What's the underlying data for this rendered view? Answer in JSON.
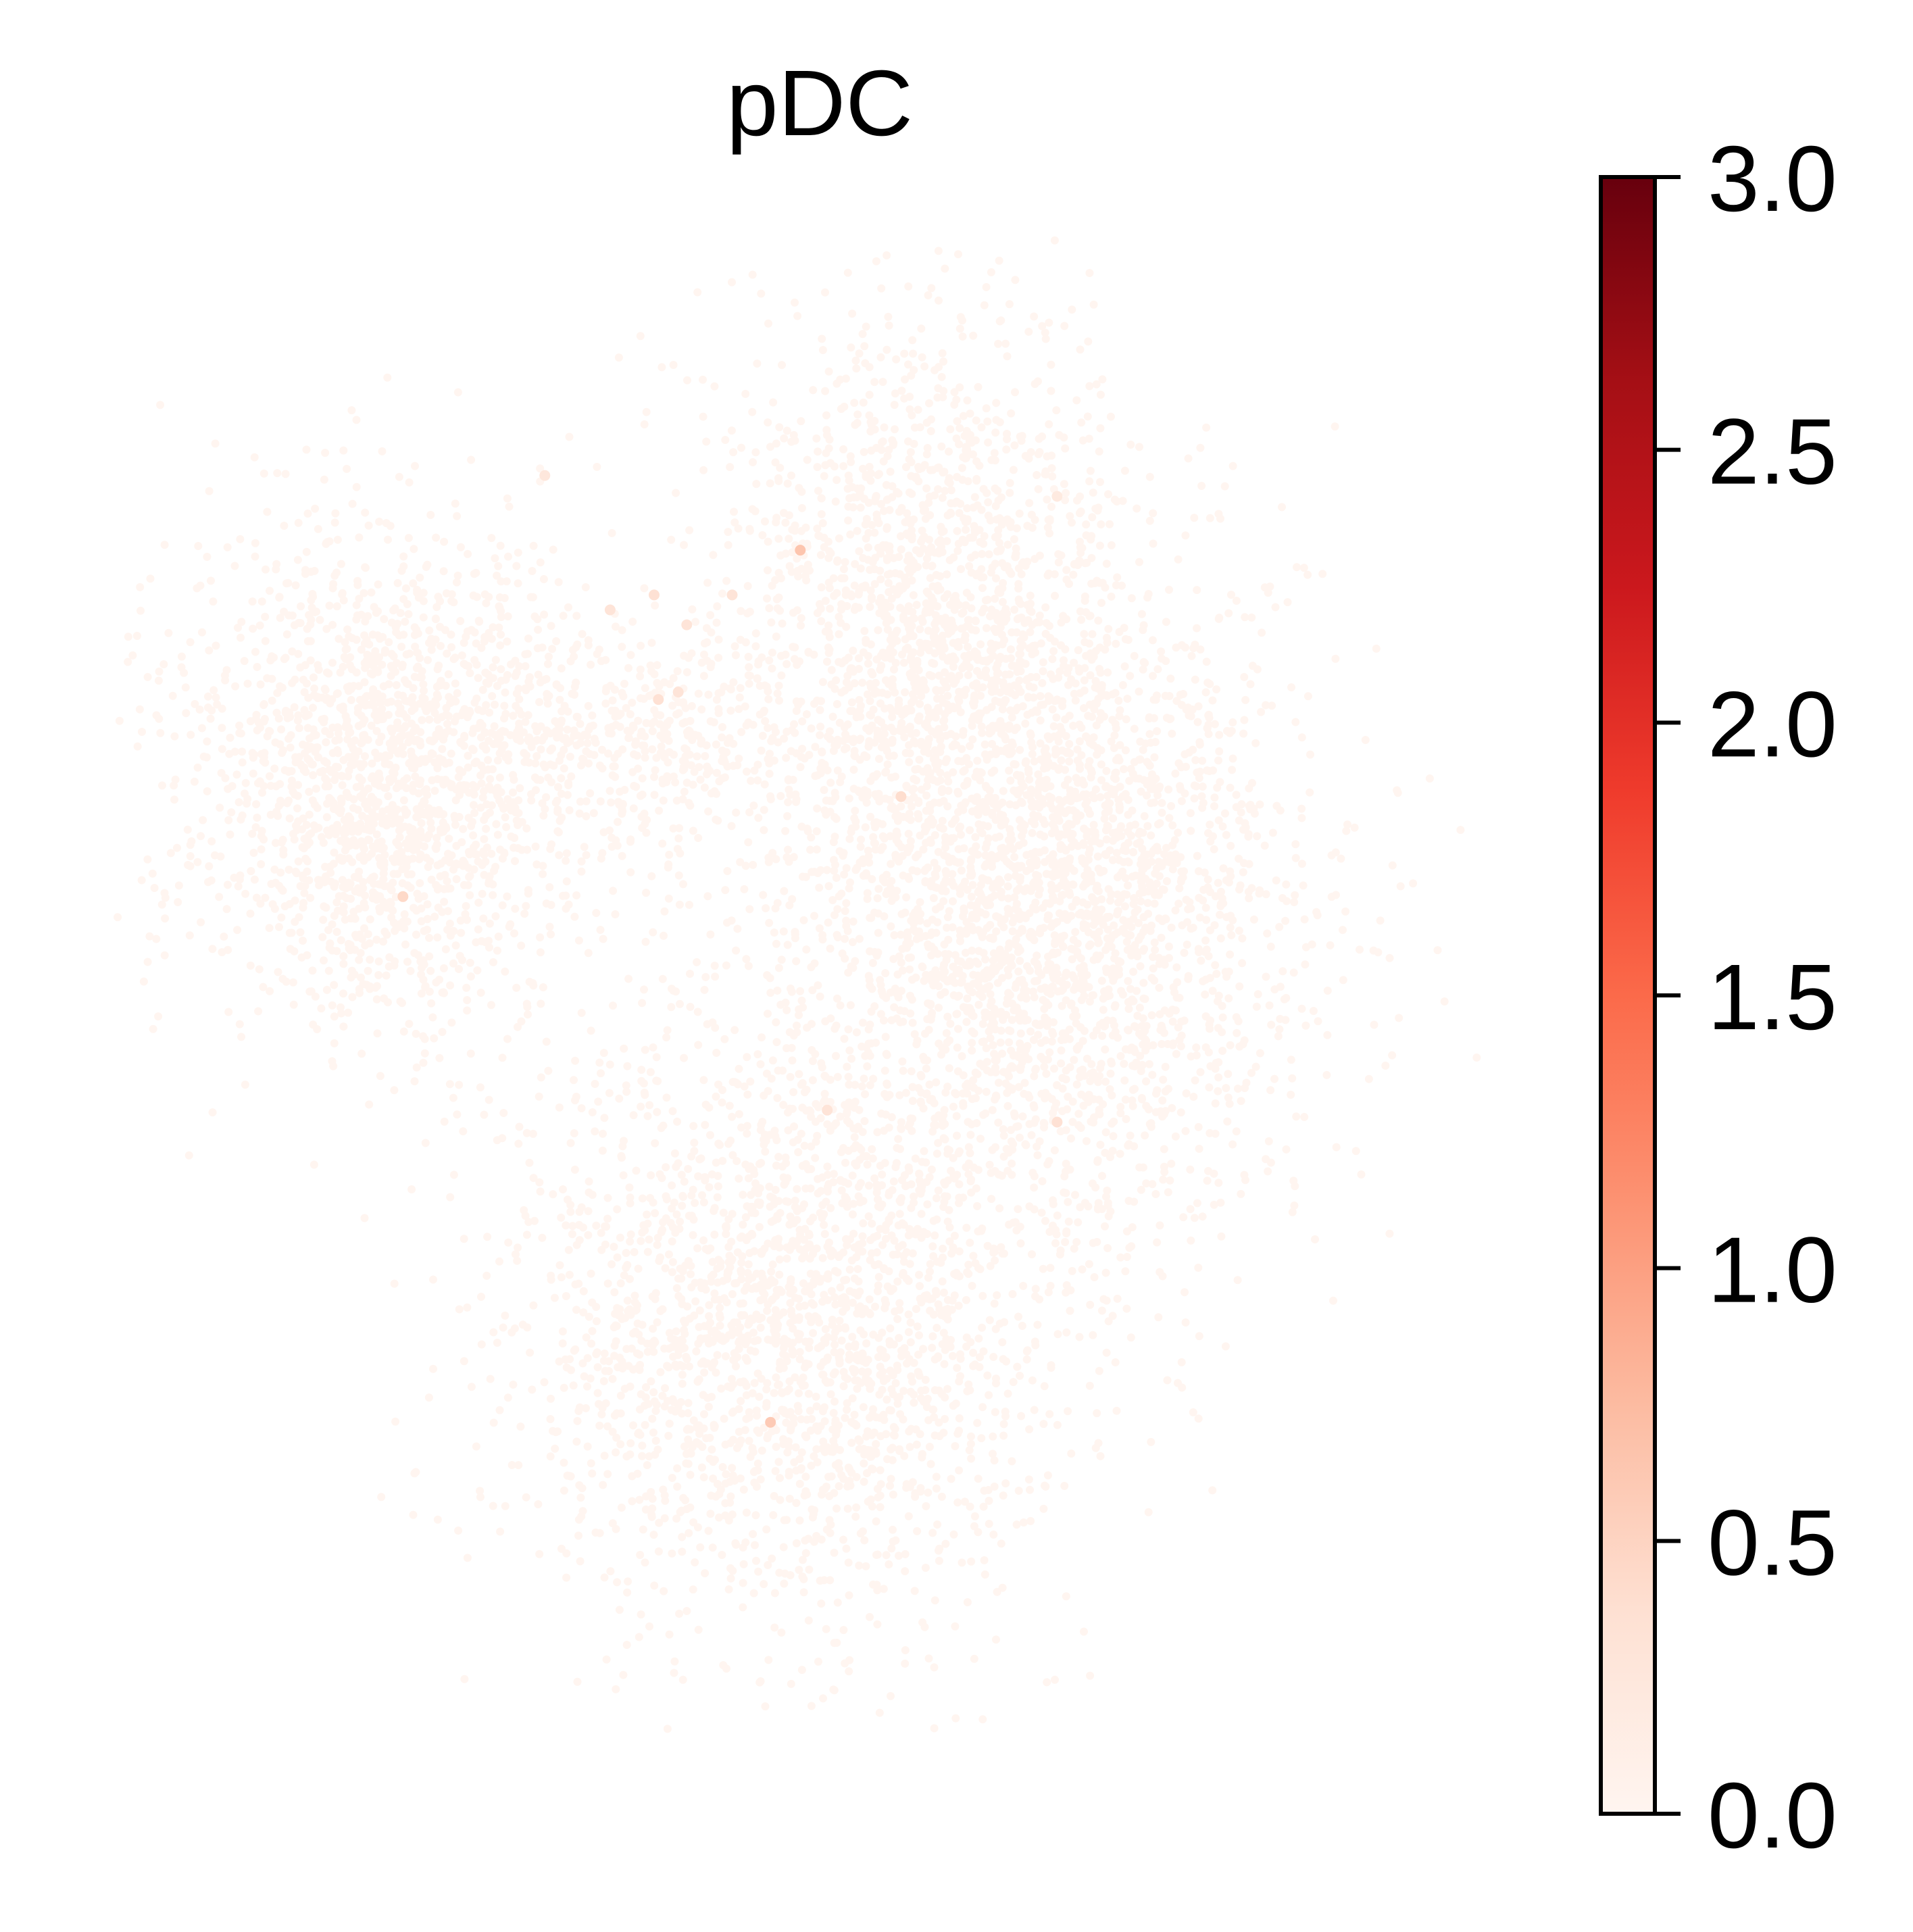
{
  "chart_data": {
    "type": "scatter",
    "title": "pDC",
    "xlabel": "",
    "ylabel": "",
    "axes_visible": false,
    "grid": false,
    "colormap": "Reds",
    "colormap_stops": [
      "#fff5f0",
      "#fee0d2",
      "#fcbba1",
      "#fc9272",
      "#fb6a4a",
      "#ef3b2c",
      "#cb181d",
      "#a50f15",
      "#67000d"
    ],
    "colorbar": {
      "range": [
        0.0,
        3.0
      ],
      "ticks": [
        0.0,
        0.5,
        1.0,
        1.5,
        2.0,
        2.5,
        3.0
      ],
      "tick_labels": [
        "0.0",
        "0.5",
        "1.0",
        "1.5",
        "2.0",
        "2.5",
        "3.0"
      ],
      "placement": "right"
    },
    "background_value": 0.0,
    "background_point_count": 9000,
    "regions": [
      {
        "name": "left cluster",
        "center": [
          0.2,
          0.64
        ],
        "spread": [
          0.075,
          0.085
        ],
        "weight": 0.22
      },
      {
        "name": "upper stream",
        "center": [
          0.38,
          0.66
        ],
        "spread": [
          0.05,
          0.035
        ],
        "weight": 0.04
      },
      {
        "name": "upper right lobe",
        "center": [
          0.57,
          0.75
        ],
        "spread": [
          0.07,
          0.1
        ],
        "weight": 0.18
      },
      {
        "name": "right mass",
        "center": [
          0.66,
          0.55
        ],
        "spread": [
          0.09,
          0.11
        ],
        "weight": 0.3
      },
      {
        "name": "lower mass",
        "center": [
          0.48,
          0.27
        ],
        "spread": [
          0.1,
          0.1
        ],
        "weight": 0.26
      }
    ],
    "highlighted_points": [
      {
        "x": 0.483,
        "y": 0.79,
        "value": 0.65
      },
      {
        "x": 0.303,
        "y": 0.84,
        "value": 0.25
      },
      {
        "x": 0.349,
        "y": 0.75,
        "value": 0.3
      },
      {
        "x": 0.38,
        "y": 0.76,
        "value": 0.35
      },
      {
        "x": 0.403,
        "y": 0.74,
        "value": 0.3
      },
      {
        "x": 0.435,
        "y": 0.76,
        "value": 0.3
      },
      {
        "x": 0.383,
        "y": 0.69,
        "value": 0.35
      },
      {
        "x": 0.397,
        "y": 0.695,
        "value": 0.3
      },
      {
        "x": 0.554,
        "y": 0.625,
        "value": 0.4
      },
      {
        "x": 0.203,
        "y": 0.558,
        "value": 0.45
      },
      {
        "x": 0.502,
        "y": 0.415,
        "value": 0.3
      },
      {
        "x": 0.664,
        "y": 0.407,
        "value": 0.35
      },
      {
        "x": 0.462,
        "y": 0.206,
        "value": 0.6
      },
      {
        "x": 0.664,
        "y": 0.826,
        "value": 0.2
      }
    ]
  }
}
